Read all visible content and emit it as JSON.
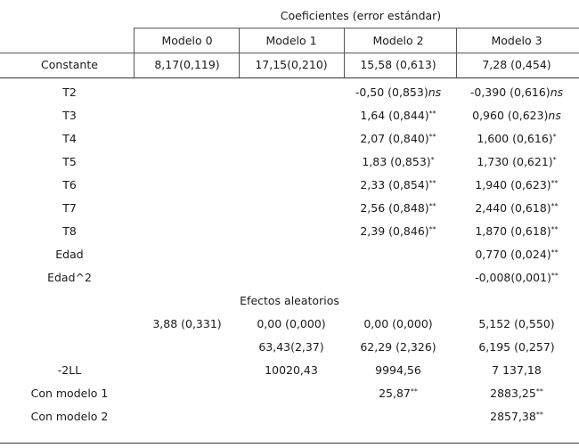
{
  "header": {
    "title": "Coeficientes (error estándar)",
    "columns": [
      "Modelo 0",
      "Modelo 1",
      "Modelo 2",
      "Modelo 3"
    ]
  },
  "constante": {
    "label": "Constante",
    "values": [
      "8,17(0,119)",
      "17,15(0,210)",
      "15,58 (0,613)",
      "7,28 (0,454)"
    ]
  },
  "fixed_rows": [
    {
      "label": "T2",
      "m2": {
        "v": "-0,50 (0,853)",
        "s": "ns"
      },
      "m3": {
        "v": "-0,390 (0,616)",
        "s": "ns"
      }
    },
    {
      "label": "T3",
      "m2": {
        "v": "1,64 (0,844)",
        "s": "**"
      },
      "m3": {
        "v": "0,960 (0,623)",
        "s": "ns"
      }
    },
    {
      "label": "T4",
      "m2": {
        "v": "2,07 (0,840)",
        "s": "**"
      },
      "m3": {
        "v": "1,600 (0,616)",
        "s": "*"
      }
    },
    {
      "label": "T5",
      "m2": {
        "v": "1,83 (0,853)",
        "s": "*"
      },
      "m3": {
        "v": "1,730 (0,621)",
        "s": "*"
      }
    },
    {
      "label": "T6",
      "m2": {
        "v": "2,33 (0,854)",
        "s": "**"
      },
      "m3": {
        "v": "1,940 (0,623)",
        "s": "**"
      }
    },
    {
      "label": "T7",
      "m2": {
        "v": "2,56 (0,848)",
        "s": "**"
      },
      "m3": {
        "v": "2,440 (0,618)",
        "s": "**"
      }
    },
    {
      "label": "T8",
      "m2": {
        "v": "2,39 (0,846)",
        "s": "**"
      },
      "m3": {
        "v": "1,870 (0,618)",
        "s": "**"
      }
    },
    {
      "label": "Edad",
      "m3": {
        "v": "0,770 (0,024)",
        "s": "**"
      }
    },
    {
      "label": "Edad^2",
      "m3": {
        "v": "-0,008(0,001)",
        "s": "**"
      }
    }
  ],
  "random_effects": {
    "title": "Efectos aleatorios",
    "row1": [
      "3,88 (0,331)",
      "0,00 (0,000)",
      "0,00 (0,000)",
      "5,152 (0,550)"
    ],
    "row2": [
      "63,43(2,37)",
      "62,29 (2,326)",
      "6,195 (0,257)"
    ]
  },
  "fit_rows": [
    {
      "label": "-2LL",
      "m1": "10020,43",
      "m2": "9994,56",
      "m3": "7 137,18"
    },
    {
      "label": "Con modelo 1",
      "m2": "25,87",
      "m2s": "**",
      "m3": "2883,25",
      "m3s": "**"
    },
    {
      "label": "Con modelo 2",
      "m3": "2857,38",
      "m3s": "**"
    }
  ]
}
